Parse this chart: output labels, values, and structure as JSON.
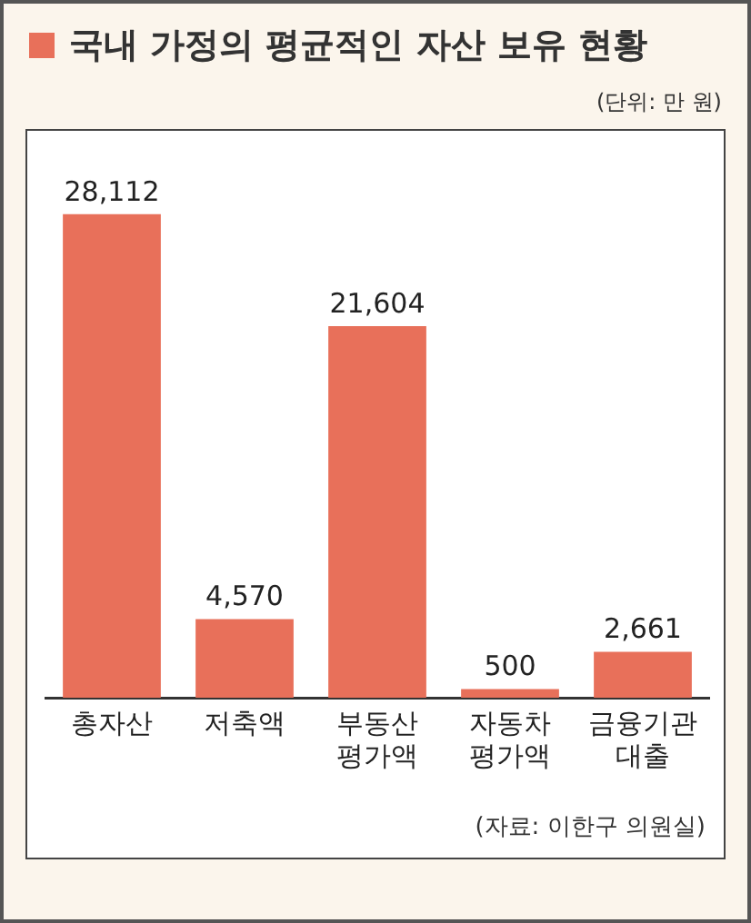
{
  "chart_data": {
    "type": "bar",
    "title": "국내 가정의 평균적인 자산 보유 현황",
    "subtitle": "(단위: 만 원)",
    "categories": [
      "총자산",
      "저축액",
      "부동산 평가액",
      "자동차 평가액",
      "금융기관 대출"
    ],
    "values": [
      28112,
      4570,
      21604,
      500,
      2661
    ],
    "value_labels": [
      "28,112",
      "4,570",
      "21,604",
      "500",
      "2,661"
    ],
    "color": "#e8705a",
    "annotations": [
      "(자료: 이한구 의원실)"
    ]
  }
}
